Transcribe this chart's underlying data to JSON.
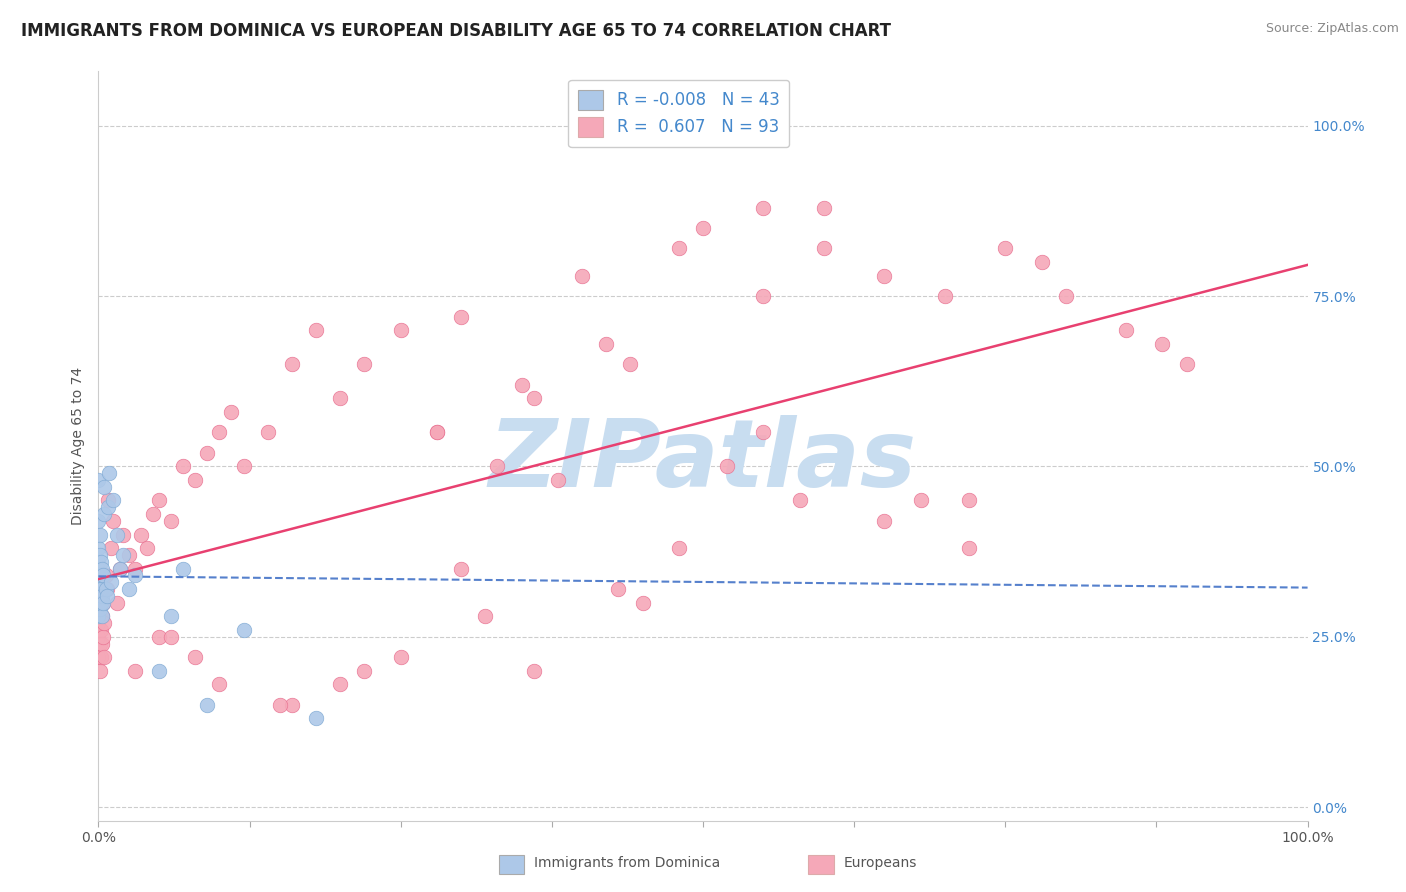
{
  "title": "IMMIGRANTS FROM DOMINICA VS EUROPEAN DISABILITY AGE 65 TO 74 CORRELATION CHART",
  "source": "Source: ZipAtlas.com",
  "xlabel_dominica": "Immigrants from Dominica",
  "xlabel_europeans": "Europeans",
  "ylabel": "Disability Age 65 to 74",
  "xlim": [
    0.0,
    1.0
  ],
  "ylim": [
    -0.02,
    1.08
  ],
  "right_yticks": [
    0.0,
    0.25,
    0.5,
    0.75,
    1.0
  ],
  "right_yticklabels": [
    "0.0%",
    "25.0%",
    "50.0%",
    "75.0%",
    "100.0%"
  ],
  "grid_color": "#cccccc",
  "grid_style": "--",
  "background_color": "#ffffff",
  "watermark_text": "ZIPatlas",
  "watermark_color": "#c8ddf0",
  "watermark_fontsize": 68,
  "legend_R1": "-0.008",
  "legend_N1": "43",
  "legend_R2": "0.607",
  "legend_N2": "93",
  "dominica_color": "#adc8e8",
  "dominica_edge": "#80aad4",
  "european_color": "#f5a8b8",
  "european_edge": "#e87090",
  "trend_dominica_color": "#5580cc",
  "trend_european_color": "#e84070",
  "dominica_R": -0.008,
  "european_R": 0.607,
  "dominica_points_x": [
    0.0,
    0.0,
    0.0,
    0.0,
    0.0,
    0.0,
    0.0,
    0.0,
    0.0,
    0.0,
    0.001,
    0.001,
    0.001,
    0.001,
    0.001,
    0.002,
    0.002,
    0.002,
    0.002,
    0.003,
    0.003,
    0.003,
    0.004,
    0.004,
    0.005,
    0.005,
    0.006,
    0.007,
    0.008,
    0.009,
    0.01,
    0.012,
    0.015,
    0.018,
    0.02,
    0.025,
    0.03,
    0.05,
    0.06,
    0.07,
    0.09,
    0.12,
    0.18
  ],
  "dominica_points_y": [
    0.28,
    0.3,
    0.32,
    0.33,
    0.34,
    0.35,
    0.36,
    0.38,
    0.42,
    0.48,
    0.29,
    0.31,
    0.33,
    0.37,
    0.4,
    0.3,
    0.32,
    0.34,
    0.36,
    0.28,
    0.31,
    0.35,
    0.3,
    0.34,
    0.43,
    0.47,
    0.32,
    0.31,
    0.44,
    0.49,
    0.33,
    0.45,
    0.4,
    0.35,
    0.37,
    0.32,
    0.34,
    0.2,
    0.28,
    0.35,
    0.15,
    0.26,
    0.13
  ],
  "european_points_x": [
    0.0,
    0.0,
    0.0,
    0.0,
    0.0,
    0.0,
    0.001,
    0.001,
    0.001,
    0.001,
    0.002,
    0.002,
    0.002,
    0.003,
    0.003,
    0.004,
    0.004,
    0.005,
    0.005,
    0.006,
    0.007,
    0.008,
    0.01,
    0.012,
    0.015,
    0.018,
    0.02,
    0.025,
    0.03,
    0.035,
    0.04,
    0.045,
    0.05,
    0.06,
    0.07,
    0.08,
    0.09,
    0.1,
    0.11,
    0.12,
    0.14,
    0.16,
    0.18,
    0.2,
    0.22,
    0.25,
    0.28,
    0.3,
    0.33,
    0.36,
    0.4,
    0.44,
    0.48,
    0.5,
    0.55,
    0.6,
    0.65,
    0.7,
    0.72,
    0.75,
    0.78,
    0.8,
    0.85,
    0.88,
    0.9,
    0.35,
    0.42,
    0.28,
    0.55,
    0.48,
    0.38,
    0.3,
    0.65,
    0.6,
    0.52,
    0.45,
    0.58,
    0.22,
    0.16,
    0.08,
    0.05,
    0.32,
    0.2,
    0.72,
    0.36,
    0.55,
    0.43,
    0.68,
    0.25,
    0.15,
    0.1,
    0.06,
    0.03
  ],
  "european_points_y": [
    0.22,
    0.25,
    0.27,
    0.29,
    0.31,
    0.33,
    0.2,
    0.24,
    0.28,
    0.32,
    0.22,
    0.26,
    0.3,
    0.24,
    0.28,
    0.25,
    0.3,
    0.22,
    0.27,
    0.34,
    0.32,
    0.45,
    0.38,
    0.42,
    0.3,
    0.35,
    0.4,
    0.37,
    0.35,
    0.4,
    0.38,
    0.43,
    0.45,
    0.42,
    0.5,
    0.48,
    0.52,
    0.55,
    0.58,
    0.5,
    0.55,
    0.65,
    0.7,
    0.6,
    0.65,
    0.7,
    0.55,
    0.72,
    0.5,
    0.6,
    0.78,
    0.65,
    0.82,
    0.85,
    0.88,
    0.82,
    0.78,
    0.75,
    0.45,
    0.82,
    0.8,
    0.75,
    0.7,
    0.68,
    0.65,
    0.62,
    0.68,
    0.55,
    0.75,
    0.38,
    0.48,
    0.35,
    0.42,
    0.88,
    0.5,
    0.3,
    0.45,
    0.2,
    0.15,
    0.22,
    0.25,
    0.28,
    0.18,
    0.38,
    0.2,
    0.55,
    0.32,
    0.45,
    0.22,
    0.15,
    0.18,
    0.25,
    0.2
  ],
  "title_fontsize": 12,
  "axis_label_fontsize": 10,
  "tick_fontsize": 10,
  "legend_fontsize": 12,
  "source_fontsize": 9
}
